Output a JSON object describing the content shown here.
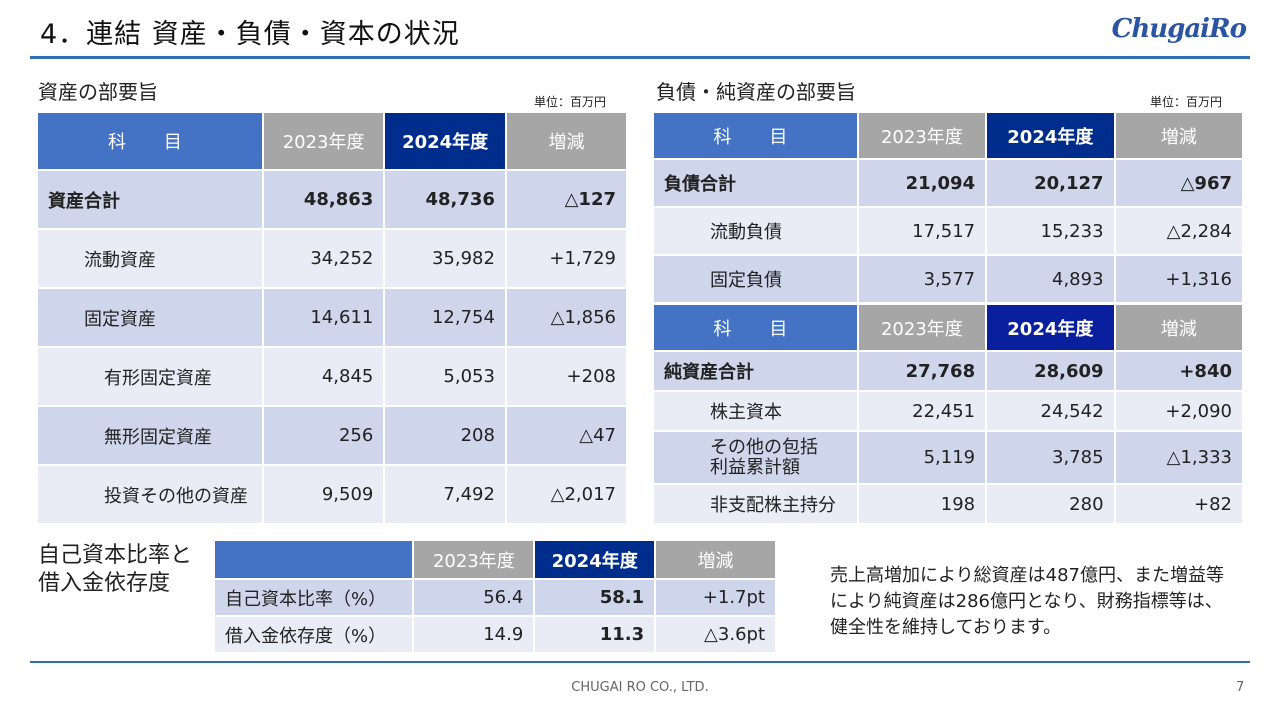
{
  "header": {
    "title": "4．連結 資産・負債・資本の状況",
    "logo": "ChugaiRo"
  },
  "assets": {
    "title": "資産の部要旨",
    "unit": "単位：百万円",
    "headers": [
      "科　目",
      "2023年度",
      "2024年度",
      "増減"
    ],
    "rows": [
      {
        "label": "資産合計",
        "prev": "48,863",
        "cur": "48,736",
        "diff": "△127"
      },
      {
        "label": "流動資産",
        "prev": "34,252",
        "cur": "35,982",
        "diff": "+1,729"
      },
      {
        "label": "固定資産",
        "prev": "14,611",
        "cur": "12,754",
        "diff": "△1,856"
      },
      {
        "label": "有形固定資産",
        "prev": "4,845",
        "cur": "5,053",
        "diff": "+208"
      },
      {
        "label": "無形固定資産",
        "prev": "256",
        "cur": "208",
        "diff": "△47"
      },
      {
        "label": "投資その他の資産",
        "prev": "9,509",
        "cur": "7,492",
        "diff": "△2,017"
      }
    ]
  },
  "liabilities": {
    "title": "負債・純資産の部要旨",
    "unit": "単位：百万円",
    "headers": [
      "科　目",
      "2023年度",
      "2024年度",
      "増減"
    ],
    "rows": [
      {
        "label": "負債合計",
        "prev": "21,094",
        "cur": "20,127",
        "diff": "△967"
      },
      {
        "label": "流動負債",
        "prev": "17,517",
        "cur": "15,233",
        "diff": "△2,284"
      },
      {
        "label": "固定負債",
        "prev": "3,577",
        "cur": "4,893",
        "diff": "+1,316"
      }
    ]
  },
  "equity": {
    "headers": [
      "科　目",
      "2023年度",
      "2024年度",
      "増減"
    ],
    "rows": [
      {
        "label": "純資産合計",
        "prev": "27,768",
        "cur": "28,609",
        "diff": "+840"
      },
      {
        "label": "株主資本",
        "prev": "22,451",
        "cur": "24,542",
        "diff": "+2,090"
      },
      {
        "label_line1": "その他の包括",
        "label_line2": "利益累計額",
        "prev": "5,119",
        "cur": "3,785",
        "diff": "△1,333"
      },
      {
        "label": "非支配株主持分",
        "prev": "198",
        "cur": "280",
        "diff": "+82"
      }
    ]
  },
  "ratios": {
    "title_line1": "自己資本比率と",
    "title_line2": "借入金依存度",
    "headers": [
      "",
      "2023年度",
      "2024年度",
      "増減"
    ],
    "rows": [
      {
        "label": "自己資本比率（%）",
        "prev": "56.4",
        "cur": "58.1",
        "diff": "+1.7pt"
      },
      {
        "label": "借入金依存度（%）",
        "prev": "14.9",
        "cur": "11.3",
        "diff": "△3.6pt"
      }
    ]
  },
  "note": "売上高増加により総資産は487億円、また増益等により純資産は286億円となり、財務指標等は、健全性を維持しております。",
  "footer": {
    "company": "CHUGAI RO CO., LTD.",
    "page": "7"
  }
}
